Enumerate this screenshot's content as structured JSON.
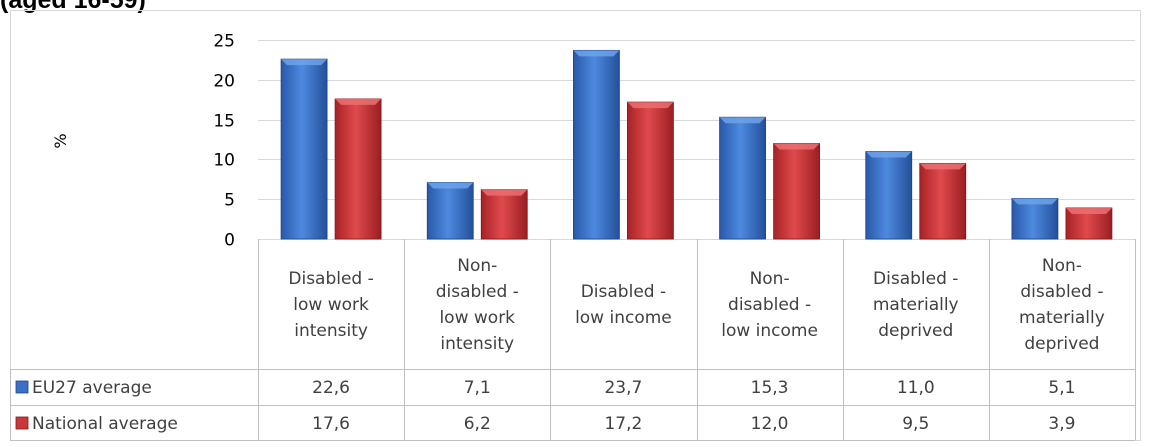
{
  "heading_text": "(aged 16-59)",
  "chart_data": {
    "type": "bar",
    "title": "(aged 16-59)",
    "ylabel": "%",
    "ylim": [
      0,
      25
    ],
    "yticks": [
      0,
      5,
      10,
      15,
      20,
      25
    ],
    "grid": true,
    "legend_placement": "data table (left column)",
    "categories": [
      [
        "Disabled -",
        "low work",
        "intensity"
      ],
      [
        "Non-",
        "disabled -",
        "low work",
        "intensity"
      ],
      [
        "Disabled -",
        "low income"
      ],
      [
        "Non-",
        "disabled -",
        "low income"
      ],
      [
        "Disabled -",
        "materially",
        "deprived"
      ],
      [
        "Non-",
        "disabled -",
        "materially",
        "deprived"
      ]
    ],
    "series": [
      {
        "name": "EU27 average",
        "color": "#3a70c8",
        "values": [
          22.6,
          7.1,
          23.7,
          15.3,
          11.0,
          5.1
        ],
        "labels": [
          "22,6",
          "7,1",
          "23,7",
          "15,3",
          "11,0",
          "5,1"
        ]
      },
      {
        "name": "National average",
        "color": "#c8383a",
        "values": [
          17.6,
          6.2,
          17.2,
          12.0,
          9.5,
          3.9
        ],
        "labels": [
          "17,6",
          "6,2",
          "17,2",
          "12,0",
          "9,5",
          "3,9"
        ]
      }
    ]
  }
}
